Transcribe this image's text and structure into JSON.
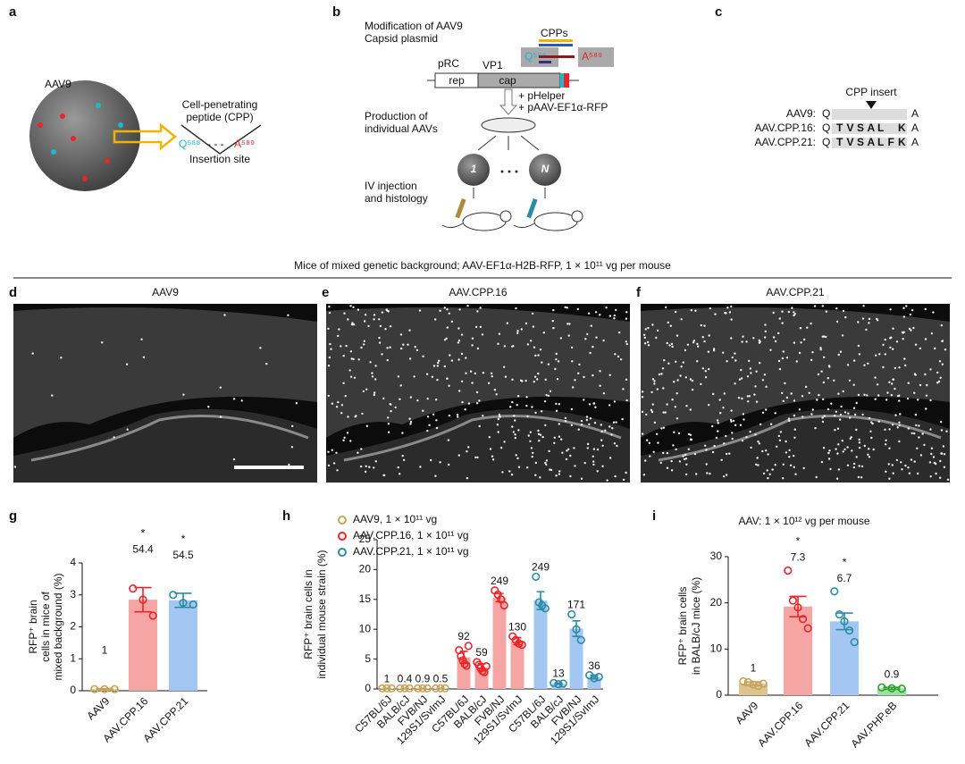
{
  "panels": {
    "a": {
      "label": "a",
      "virus": "AAV9",
      "cpp": [
        "Cell-penetrating",
        "peptide (CPP)"
      ],
      "q": "Q⁵⁸⁸",
      "dashes": "- - -",
      "a": "A⁵⁸⁹",
      "site": "Insertion site"
    },
    "b": {
      "label": "b",
      "modification": [
        "Modification of AAV9",
        "Capsid plasmid"
      ],
      "cpps": "CPPs",
      "q": "Q⁵⁸⁸",
      "a": "A⁵⁸⁹",
      "prc": "pRC",
      "vp1": "VP1",
      "rep": "rep",
      "cap": "cap",
      "helper": [
        "+ pHelper",
        "+ pAAV-EF1α-RFP"
      ],
      "production": [
        "Production of",
        "individual AAVs"
      ],
      "first": "1",
      "last": "N",
      "injection": [
        "IV injection",
        "and histology"
      ]
    },
    "c": {
      "label": "c",
      "insert": "CPP insert",
      "rows": [
        {
          "name": "AAV9:",
          "start": "Q",
          "end": "A"
        },
        {
          "name": "AAV.CPP.16:",
          "start": "Q",
          "residues": [
            "T",
            "V",
            "S",
            "A",
            "L",
            null,
            "K"
          ],
          "end": "A"
        },
        {
          "name": "AAV.CPP.21:",
          "start": "Q",
          "residues": [
            "T",
            "V",
            "S",
            "A",
            "L",
            "F",
            "K"
          ],
          "end": "A"
        }
      ]
    }
  },
  "header": "Mice of mixed genetic background; AAV-EF1α-H2B-RFP, 1 × 10¹¹ vg per mouse",
  "images": [
    {
      "label": "d",
      "title": "AAV9"
    },
    {
      "label": "e",
      "title": "AAV.CPP.16"
    },
    {
      "label": "f",
      "title": "AAV.CPP.21"
    }
  ],
  "chart_data": [
    {
      "type": "bar",
      "label": "g",
      "ylabel": [
        "RFP⁺ brain",
        "cells in mice of",
        "mixed background (%)"
      ],
      "categories": [
        "AAV9",
        "AAV.CPP.16",
        "AAV.CPP.21"
      ],
      "values": [
        0.05,
        2.85,
        2.83
      ],
      "errors": [
        0.02,
        0.38,
        0.22
      ],
      "points": [
        [
          0.05,
          0.05,
          0.05
        ],
        [
          3.2,
          2.85,
          2.35
        ],
        [
          3.0,
          2.75,
          2.7
        ]
      ],
      "colors": [
        "#dcc48f",
        "#f6a5a5",
        "#a3c7f2"
      ],
      "point_colors": [
        "#c9a35a",
        "#e8262a",
        "#2a8ca8"
      ],
      "annotations": [
        1,
        54.4,
        54.5
      ],
      "stars": [
        null,
        "*",
        "*"
      ],
      "ylim": [
        0,
        4
      ],
      "yticks": [
        0,
        1,
        2,
        3,
        4
      ]
    },
    {
      "type": "bar",
      "label": "h",
      "ylabel": [
        "RFP⁺ brain cells in",
        "individual mouse strain (%)"
      ],
      "categories": [
        "C57BL/6J",
        "BALB/cJ",
        "FVB/NJ",
        "129S1/SvImJ",
        "C57BL/6J",
        "BALB/cJ",
        "FVB/NJ",
        "129S1/SvImJ",
        "C57BL/6J",
        "BALB/cJ",
        "FVB/NJ",
        "129S1/SvImJ"
      ],
      "series": [
        {
          "name": "AAV9, 1 × 10¹¹ vg",
          "color": "#dcc48f",
          "point_color": "#c9a35a",
          "values": [
            0.1,
            0.1,
            0.1,
            0.1,
            null,
            null,
            null,
            null,
            null,
            null,
            null,
            null
          ],
          "errors": [
            0.02,
            0.02,
            0.02,
            0.02,
            null,
            null,
            null,
            null,
            null,
            null,
            null,
            null
          ],
          "points": [
            [
              0.1,
              0.1,
              0.1
            ],
            [
              0.1,
              0.1,
              0.1
            ],
            [
              0.1,
              0.1,
              0.1
            ],
            [
              0.1,
              0.1,
              0.1
            ],
            null,
            null,
            null,
            null,
            null,
            null,
            null,
            null
          ],
          "annotations": [
            1,
            0.4,
            0.9,
            0.5,
            null,
            null,
            null,
            null,
            null,
            null,
            null,
            null
          ]
        },
        {
          "name": "AAV.CPP.16, 1 × 10¹¹ vg",
          "color": "#f6a5a5",
          "point_color": "#e8262a",
          "values": [
            null,
            null,
            null,
            null,
            5.3,
            3.6,
            15.3,
            8.0,
            null,
            null,
            null,
            null
          ],
          "errors": [
            null,
            null,
            null,
            null,
            1.0,
            0.6,
            0.7,
            0.6,
            null,
            null,
            null,
            null
          ],
          "points": [
            null,
            null,
            null,
            null,
            [
              6.5,
              5.5,
              4.8,
              4.2,
              3.9,
              7.2
            ],
            [
              4.5,
              4.0,
              3.5,
              3.0,
              2.8,
              3.8
            ],
            [
              16.5,
              15.8,
              15.0,
              14.0
            ],
            [
              8.8,
              8.2,
              7.6,
              7.4
            ],
            null,
            null,
            null,
            null
          ],
          "annotations": [
            null,
            null,
            null,
            null,
            92,
            59,
            249,
            130,
            null,
            null,
            null,
            null
          ]
        },
        {
          "name": "AAV.CPP.21, 1 × 10¹¹ vg",
          "color": "#a3c7f2",
          "point_color": "#2a8ca8",
          "values": [
            null,
            null,
            null,
            null,
            null,
            null,
            null,
            null,
            14.8,
            0.9,
            10.1,
            2.0
          ],
          "errors": [
            null,
            null,
            null,
            null,
            null,
            null,
            null,
            null,
            1.5,
            0.1,
            1.3,
            0.3
          ],
          "points": [
            null,
            null,
            null,
            null,
            null,
            null,
            null,
            null,
            [
              18.8,
              14.5,
              14.0,
              13.5
            ],
            [
              1.0,
              0.8,
              0.9
            ],
            [
              12.5,
              10.0,
              8.2
            ],
            [
              2.3,
              1.8,
              2.0
            ]
          ],
          "annotations": [
            null,
            null,
            null,
            null,
            null,
            null,
            null,
            null,
            249,
            13,
            171,
            36
          ]
        }
      ],
      "ylim": [
        0,
        25
      ],
      "yticks": [
        0,
        5,
        10,
        15,
        20,
        25
      ]
    },
    {
      "type": "bar",
      "label": "i",
      "title": "AAV: 1 × 10¹² vg per mouse",
      "ylabel": [
        "RFP⁺ brain cells",
        "in BALB/cJ mice (%)"
      ],
      "categories": [
        "AAV9",
        "AAV.CPP.16",
        "AAV.CPP.21",
        "AAV.PHP.eB"
      ],
      "values": [
        2.5,
        19.2,
        16.0,
        1.5
      ],
      "errors": [
        0.4,
        2.2,
        1.8,
        0.2
      ],
      "points": [
        [
          3.0,
          2.8,
          2.3,
          2.0,
          2.5
        ],
        [
          27.0,
          20.5,
          19.0,
          16.5,
          14.5
        ],
        [
          22.5,
          17.5,
          16.0,
          14.0,
          11.5
        ],
        [
          1.7,
          1.5,
          1.4
        ]
      ],
      "colors": [
        "#dcc48f",
        "#f6a5a5",
        "#a3c7f2",
        "#9fe09f"
      ],
      "point_colors": [
        "#c9a35a",
        "#e8262a",
        "#2a8ca8",
        "#2ca02c"
      ],
      "annotations": [
        1,
        7.3,
        6.7,
        0.9
      ],
      "stars": [
        null,
        "*",
        "*",
        null
      ],
      "ylim": [
        0,
        30
      ],
      "yticks": [
        0,
        10,
        20,
        30
      ]
    }
  ]
}
